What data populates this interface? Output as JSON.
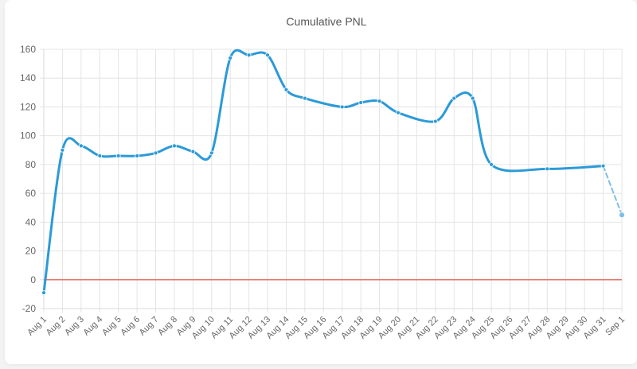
{
  "chart_data": {
    "type": "line",
    "title": "Cumulative PNL",
    "xlabel": "",
    "ylabel": "",
    "ylim": [
      -20,
      160
    ],
    "yticks": [
      -20,
      0,
      20,
      40,
      60,
      80,
      100,
      120,
      140,
      160
    ],
    "categories": [
      "Aug 1",
      "Aug 2",
      "Aug 3",
      "Aug 4",
      "Aug 5",
      "Aug 6",
      "Aug 7",
      "Aug 8",
      "Aug 9",
      "Aug 10",
      "Aug 11",
      "Aug 12",
      "Aug 13",
      "Aug 14",
      "Aug 15",
      "Aug 16",
      "Aug 17",
      "Aug 18",
      "Aug 19",
      "Aug 20",
      "Aug 21",
      "Aug 22",
      "Aug 23",
      "Aug 24",
      "Aug 25",
      "Aug 26",
      "Aug 27",
      "Aug 28",
      "Aug 29",
      "Aug 30",
      "Aug 31",
      "Sep 1"
    ],
    "series": [
      {
        "values": [
          -9,
          90,
          93,
          86,
          86,
          86,
          88,
          93,
          89,
          88,
          154,
          156,
          156,
          132,
          126,
          null,
          120,
          123,
          124,
          116,
          null,
          110,
          126,
          126,
          80,
          null,
          null,
          77,
          null,
          null,
          79,
          null
        ]
      },
      {
        "values": [
          null,
          null,
          null,
          null,
          null,
          null,
          null,
          null,
          null,
          null,
          null,
          null,
          null,
          null,
          null,
          null,
          null,
          null,
          null,
          null,
          null,
          null,
          null,
          null,
          null,
          null,
          null,
          null,
          null,
          null,
          79,
          45
        ],
        "style": "dashed"
      }
    ],
    "reference_lines": [
      {
        "y": 0
      }
    ],
    "grid": true,
    "colors": {
      "series": "#2b9ad8",
      "projection": "#7fbfe8",
      "zero_line": "#e8736b",
      "grid": "#e4e4e4"
    }
  }
}
